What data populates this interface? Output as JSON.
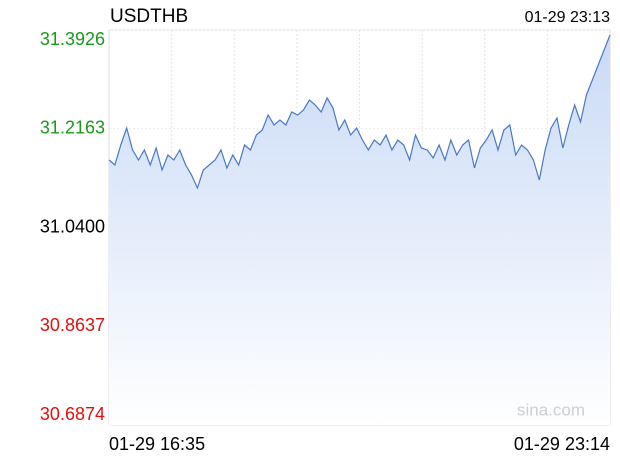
{
  "chart_data": {
    "type": "line",
    "title": "USDTHB",
    "timestamp": "01-29 23:13",
    "watermark": "sina.com",
    "categories": [
      "01-29 16:35",
      null,
      null,
      null,
      null,
      null,
      null,
      null,
      null,
      null,
      null,
      null,
      null,
      null,
      null,
      null,
      null,
      null,
      null,
      null,
      null,
      null,
      null,
      null,
      null,
      null,
      null,
      null,
      null,
      null,
      null,
      null,
      null,
      null,
      null,
      null,
      null,
      null,
      null,
      null,
      null,
      null,
      null,
      null,
      null,
      null,
      null,
      null,
      null,
      null,
      null,
      null,
      null,
      null,
      null,
      null,
      null,
      null,
      null,
      null,
      null,
      null,
      null,
      null,
      null,
      null,
      null,
      null,
      null,
      null,
      null,
      null,
      null,
      null,
      null,
      null,
      null,
      null,
      null,
      null,
      null,
      null,
      null,
      null,
      null,
      "01-29 23:14"
    ],
    "series": [
      {
        "name": "USDTHB",
        "color": "#4a78c4",
        "values": [
          31.1605,
          31.1516,
          31.1873,
          31.2176,
          31.1784,
          31.1605,
          31.1784,
          31.1516,
          31.1819,
          31.1427,
          31.1694,
          31.1605,
          31.1784,
          31.1516,
          31.1337,
          31.1105,
          31.1427,
          31.1516,
          31.1605,
          31.1784,
          31.1462,
          31.1694,
          31.1516,
          31.1873,
          31.1784,
          31.2051,
          31.2141,
          31.2408,
          31.223,
          31.2319,
          31.223,
          31.2462,
          31.2408,
          31.2498,
          31.2676,
          31.2587,
          31.2462,
          31.2712,
          31.2533,
          31.2141,
          31.2319,
          31.2051,
          31.2176,
          31.1962,
          31.1784,
          31.1962,
          31.1873,
          31.2051,
          31.1784,
          31.1962,
          31.1873,
          31.1605,
          31.2051,
          31.1819,
          31.1784,
          31.1641,
          31.1873,
          31.1605,
          31.1962,
          31.1694,
          31.1873,
          31.1962,
          31.1462,
          31.1819,
          31.1962,
          31.2141,
          31.1784,
          31.2141,
          31.223,
          31.1694,
          31.1873,
          31.1784,
          31.1605,
          31.1248,
          31.1784,
          31.2176,
          31.2355,
          31.1819,
          31.223,
          31.2587,
          31.2284,
          31.2766,
          31.3033,
          31.3301,
          31.3569,
          31.3837
        ]
      }
    ],
    "ylim": [
      30.6874,
      31.3926
    ],
    "yticks": [
      {
        "value": 31.3926,
        "label": "31.3926"
      },
      {
        "value": 31.2163,
        "label": "31.2163"
      },
      {
        "value": 31.04,
        "label": "31.0400"
      },
      {
        "value": 30.8637,
        "label": "30.8637"
      },
      {
        "value": 30.6874,
        "label": "30.6874"
      }
    ],
    "ytick_colors": [
      "#1a9a1a",
      "#1a9a1a",
      "#000000",
      "#e01010",
      "#e01010"
    ],
    "grid": true
  }
}
